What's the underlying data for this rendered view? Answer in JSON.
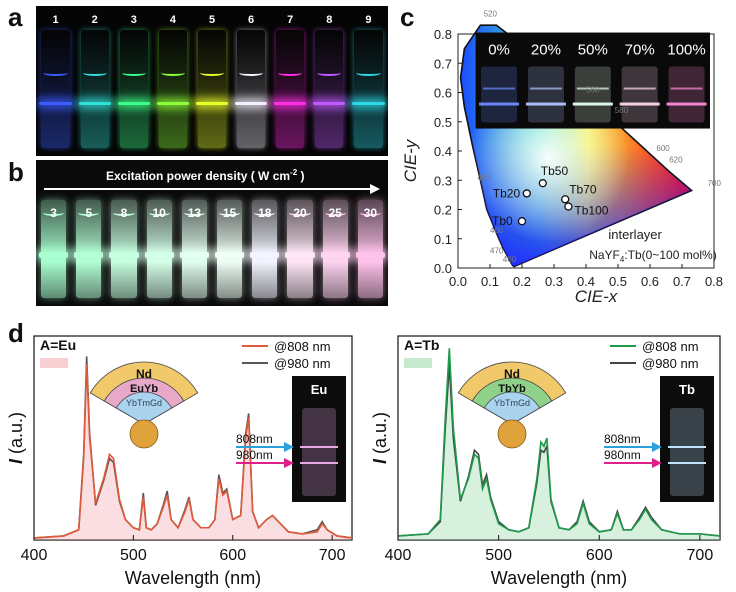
{
  "panels": {
    "a": {
      "letter": "a",
      "vials": [
        {
          "label": "1",
          "color": "#3a5cff"
        },
        {
          "label": "2",
          "color": "#33e0d8"
        },
        {
          "label": "3",
          "color": "#3cff8a"
        },
        {
          "label": "4",
          "color": "#8cff3a"
        },
        {
          "label": "5",
          "color": "#e8ff2a"
        },
        {
          "label": "6",
          "color": "#f4f0ff"
        },
        {
          "label": "7",
          "color": "#ff2fe6"
        },
        {
          "label": "8",
          "color": "#c25bff"
        },
        {
          "label": "9",
          "color": "#2fd8e6"
        }
      ]
    },
    "b": {
      "letter": "b",
      "title": "Excitation power density ( W cm",
      "title_sup": "-2",
      "title_end": " )",
      "vials": [
        {
          "label": "3",
          "color": "#a8ffd0"
        },
        {
          "label": "5",
          "color": "#b4ffd6"
        },
        {
          "label": "8",
          "color": "#c6ffe0"
        },
        {
          "label": "10",
          "color": "#d4ffe8"
        },
        {
          "label": "13",
          "color": "#e2fff0"
        },
        {
          "label": "15",
          "color": "#eefff4"
        },
        {
          "label": "18",
          "color": "#f4f4ff"
        },
        {
          "label": "20",
          "color": "#ffe6f6"
        },
        {
          "label": "25",
          "color": "#ffd4f0"
        },
        {
          "label": "30",
          "color": "#ffc2ea"
        }
      ]
    },
    "c": {
      "letter": "c",
      "photo_labels": [
        "0%",
        "20%",
        "50%",
        "70%",
        "100%"
      ],
      "photo_colors": [
        "#6a8cff",
        "#b0c4ff",
        "#e8fff0",
        "#ffd8ec",
        "#ff8ad8"
      ],
      "xlabel": "CIE-x",
      "ylabel": "CIE-y",
      "xticks": [
        "0.0",
        "0.1",
        "0.2",
        "0.3",
        "0.4",
        "0.5",
        "0.6",
        "0.7",
        "0.8"
      ],
      "yticks": [
        "0.0",
        "0.1",
        "0.2",
        "0.3",
        "0.4",
        "0.5",
        "0.6",
        "0.7",
        "0.8"
      ],
      "wavelength_marks": [
        "520",
        "560",
        "580",
        "600",
        "620",
        "700",
        "490",
        "480",
        "470",
        "460"
      ],
      "points": [
        {
          "label": "Tb0",
          "x": 0.2,
          "y": 0.16
        },
        {
          "label": "Tb20",
          "x": 0.215,
          "y": 0.255
        },
        {
          "label": "Tb50",
          "x": 0.265,
          "y": 0.29
        },
        {
          "label": "Tb70",
          "x": 0.335,
          "y": 0.235
        },
        {
          "label": "Tb100",
          "x": 0.345,
          "y": 0.21
        }
      ],
      "annotation1": "interlayer",
      "annotation2_main": "NaYF",
      "annotation2_sub": "4",
      "annotation2_end": ":Tb(0~100 mol%)"
    },
    "d": {
      "letter": "d"
    }
  },
  "chart_data": [
    {
      "type": "line",
      "title": "A=Eu",
      "xlabel": "Wavelength (nm)",
      "ylabel": "I (a.u.)",
      "xlim": [
        400,
        720
      ],
      "xticks": [
        "400",
        "500",
        "600",
        "700"
      ],
      "series": [
        {
          "name": "@808 nm",
          "color": "#e05a3a",
          "x": [
            400,
            430,
            445,
            450,
            453,
            456,
            462,
            470,
            476,
            480,
            486,
            492,
            500,
            506,
            510,
            513,
            518,
            524,
            530,
            534,
            538,
            545,
            552,
            556,
            560,
            568,
            576,
            582,
            586,
            590,
            594,
            600,
            608,
            613,
            616,
            620,
            626,
            634,
            640,
            648,
            656,
            670,
            685,
            690,
            695,
            705,
            720
          ],
          "values": [
            0.01,
            0.02,
            0.05,
            0.4,
            0.86,
            0.5,
            0.18,
            0.3,
            0.42,
            0.4,
            0.2,
            0.1,
            0.06,
            0.05,
            0.21,
            0.06,
            0.05,
            0.08,
            0.16,
            0.22,
            0.1,
            0.06,
            0.14,
            0.2,
            0.1,
            0.06,
            0.06,
            0.1,
            0.3,
            0.22,
            0.24,
            0.1,
            0.12,
            0.5,
            0.6,
            0.14,
            0.06,
            0.1,
            0.12,
            0.08,
            0.04,
            0.03,
            0.04,
            0.08,
            0.05,
            0.02,
            0.01
          ]
        },
        {
          "name": "@980 nm",
          "color": "#555555",
          "x": [
            400,
            430,
            445,
            450,
            453,
            456,
            462,
            470,
            476,
            480,
            486,
            492,
            500,
            506,
            510,
            513,
            518,
            524,
            530,
            534,
            538,
            545,
            552,
            556,
            560,
            568,
            576,
            582,
            586,
            590,
            594,
            600,
            608,
            613,
            616,
            620,
            626,
            634,
            640,
            648,
            656,
            670,
            685,
            690,
            695,
            705,
            720
          ],
          "values": [
            0.01,
            0.02,
            0.05,
            0.42,
            0.9,
            0.52,
            0.17,
            0.29,
            0.4,
            0.38,
            0.19,
            0.1,
            0.06,
            0.05,
            0.23,
            0.06,
            0.05,
            0.08,
            0.17,
            0.24,
            0.1,
            0.06,
            0.15,
            0.21,
            0.1,
            0.06,
            0.06,
            0.1,
            0.32,
            0.23,
            0.25,
            0.1,
            0.12,
            0.52,
            0.62,
            0.14,
            0.06,
            0.1,
            0.12,
            0.08,
            0.04,
            0.03,
            0.05,
            0.09,
            0.05,
            0.02,
            0.01
          ]
        }
      ],
      "legend": [
        "@808 nm",
        "@980 nm"
      ],
      "inset": {
        "title": "Eu",
        "arrow1": "808nm",
        "arrow2": "980nm"
      },
      "shell_labels": {
        "outer": "Nd",
        "middle": "EuYb",
        "inner": "YbTmGd"
      }
    },
    {
      "type": "line",
      "title": "A=Tb",
      "xlabel": "Wavelength (nm)",
      "ylabel": "I (a.u.)",
      "xlim": [
        400,
        720
      ],
      "xticks": [
        "400",
        "500",
        "600",
        "700"
      ],
      "series": [
        {
          "name": "@808 nm",
          "color": "#1e9a4a",
          "x": [
            400,
            430,
            442,
            447,
            451,
            455,
            462,
            470,
            476,
            480,
            484,
            488,
            492,
            500,
            510,
            520,
            530,
            538,
            542,
            545,
            548,
            552,
            560,
            570,
            578,
            584,
            590,
            600,
            612,
            618,
            624,
            632,
            640,
            646,
            652,
            662,
            680,
            700,
            720
          ],
          "values": [
            0.02,
            0.03,
            0.1,
            0.6,
            0.94,
            0.55,
            0.2,
            0.3,
            0.42,
            0.4,
            0.25,
            0.3,
            0.2,
            0.08,
            0.05,
            0.04,
            0.06,
            0.3,
            0.48,
            0.46,
            0.5,
            0.2,
            0.06,
            0.05,
            0.08,
            0.18,
            0.08,
            0.04,
            0.05,
            0.13,
            0.05,
            0.05,
            0.1,
            0.15,
            0.1,
            0.05,
            0.03,
            0.03,
            0.02
          ]
        },
        {
          "name": "@980 nm",
          "color": "#444444",
          "x": [
            400,
            430,
            442,
            447,
            451,
            455,
            462,
            470,
            476,
            480,
            484,
            488,
            492,
            500,
            510,
            520,
            530,
            538,
            542,
            545,
            548,
            552,
            560,
            570,
            578,
            584,
            590,
            600,
            612,
            618,
            624,
            632,
            640,
            646,
            652,
            662,
            680,
            700,
            720
          ],
          "values": [
            0.02,
            0.03,
            0.09,
            0.55,
            0.86,
            0.5,
            0.19,
            0.31,
            0.44,
            0.42,
            0.27,
            0.32,
            0.21,
            0.09,
            0.05,
            0.04,
            0.06,
            0.28,
            0.44,
            0.43,
            0.46,
            0.19,
            0.06,
            0.05,
            0.09,
            0.19,
            0.09,
            0.04,
            0.05,
            0.14,
            0.05,
            0.05,
            0.11,
            0.16,
            0.11,
            0.05,
            0.03,
            0.03,
            0.02
          ]
        }
      ],
      "legend": [
        "@808 nm",
        "@980 nm"
      ],
      "inset": {
        "title": "Tb",
        "arrow1": "808nm",
        "arrow2": "980nm"
      },
      "shell_labels": {
        "outer": "Nd",
        "middle": "TbYb",
        "inner": "YbTmGd"
      }
    }
  ]
}
